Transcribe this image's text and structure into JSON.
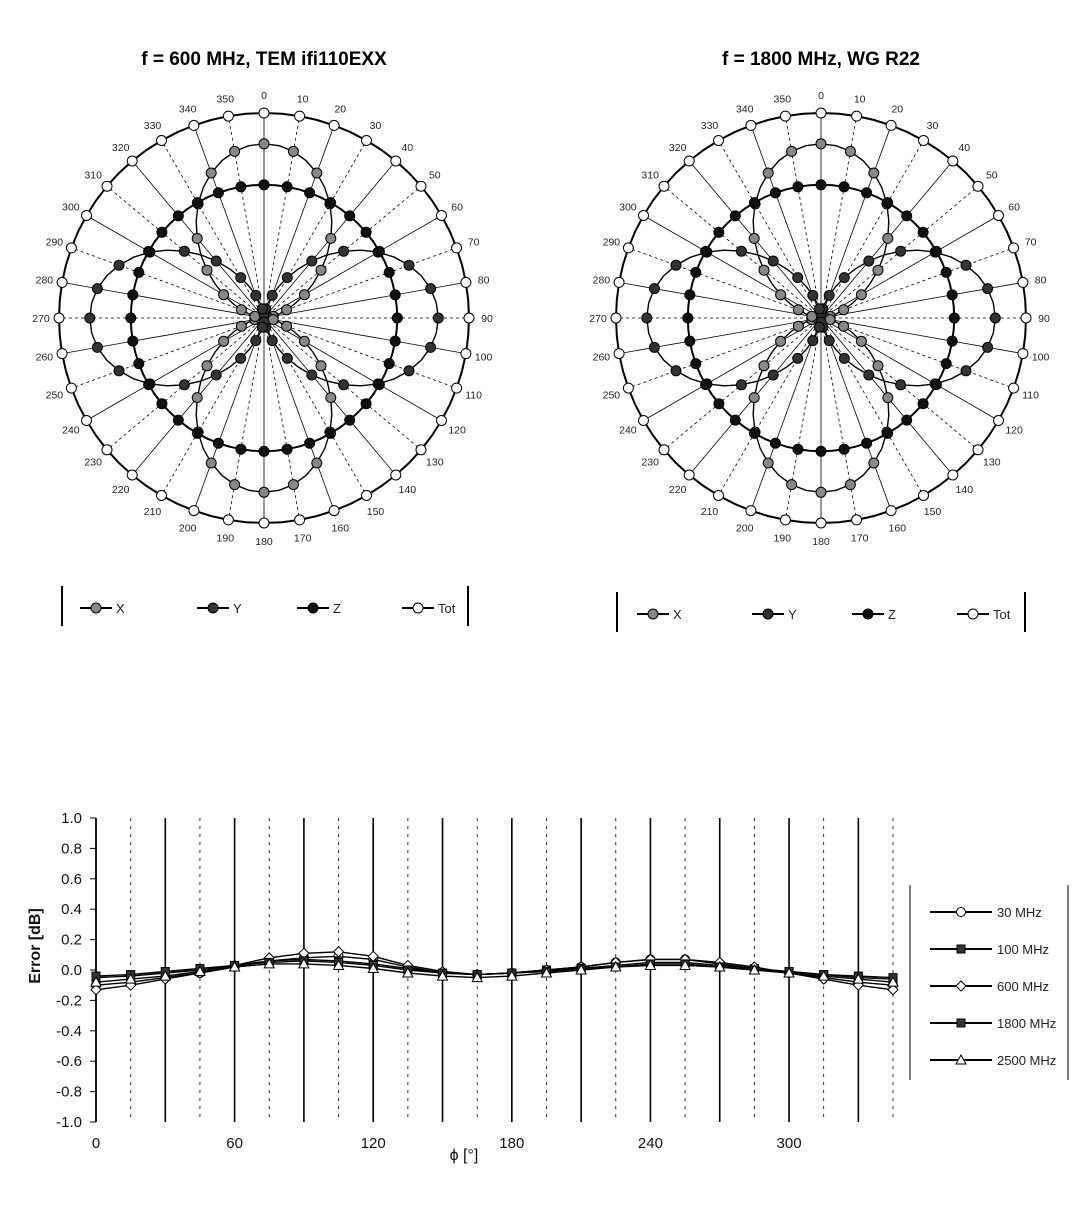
{
  "chart_data": [
    {
      "type": "polar",
      "title": "f = 600 MHz, TEM  ifi110EXX",
      "angle_labels": [
        "0",
        "10",
        "20",
        "30",
        "40",
        "50",
        "60",
        "70",
        "80",
        "90",
        "100",
        "110",
        "120",
        "130",
        "140",
        "150",
        "160",
        "170",
        "180",
        "190",
        "200",
        "210",
        "220",
        "230",
        "240",
        "250",
        "260",
        "270",
        "280",
        "290",
        "300",
        "310",
        "320",
        "330",
        "340",
        "350"
      ],
      "series": [
        {
          "name": "X",
          "pattern": "cos2",
          "max": 0.85,
          "min": 0.02
        },
        {
          "name": "Y",
          "pattern": "sin2",
          "max": 0.85,
          "min": 0.02
        },
        {
          "name": "Z",
          "pattern": "const",
          "max": 0.65,
          "min": 0.65
        },
        {
          "name": "Tot",
          "pattern": "const",
          "max": 1.0,
          "min": 1.0
        }
      ],
      "legend_position": "bottom"
    },
    {
      "type": "polar",
      "title": "f = 1800 MHz, WG R22",
      "angle_labels": [
        "0",
        "10",
        "20",
        "30",
        "40",
        "50",
        "60",
        "70",
        "80",
        "90",
        "100",
        "110",
        "120",
        "130",
        "140",
        "150",
        "160",
        "170",
        "180",
        "190",
        "200",
        "210",
        "220",
        "230",
        "240",
        "250",
        "260",
        "270",
        "280",
        "290",
        "300",
        "310",
        "320",
        "330",
        "340",
        "350"
      ],
      "series": [
        {
          "name": "X",
          "pattern": "cos2",
          "max": 0.85,
          "min": 0.02
        },
        {
          "name": "Y",
          "pattern": "sin2",
          "max": 0.85,
          "min": 0.02
        },
        {
          "name": "Z",
          "pattern": "const",
          "max": 0.65,
          "min": 0.65
        },
        {
          "name": "Tot",
          "pattern": "const",
          "max": 1.0,
          "min": 1.0
        }
      ],
      "legend_position": "bottom"
    },
    {
      "type": "line",
      "title": "",
      "xlabel": "ϕ [°]",
      "ylabel": "Error [dB]",
      "xlim": [
        0,
        345
      ],
      "ylim": [
        -1.0,
        1.0
      ],
      "xticks": [
        "0",
        "60",
        "120",
        "180",
        "240",
        "300"
      ],
      "yticks": [
        "1.0",
        "0.8",
        "0.6",
        "0.4",
        "0.2",
        "0.0",
        "-0.2",
        "-0.4",
        "-0.6",
        "-0.8",
        "-1.0"
      ],
      "x": [
        0,
        15,
        30,
        45,
        60,
        75,
        90,
        105,
        120,
        135,
        150,
        165,
        180,
        195,
        210,
        225,
        240,
        255,
        270,
        285,
        300,
        315,
        330,
        345
      ],
      "series": [
        {
          "name": "30 MHz",
          "marker": "circle-open",
          "values": [
            -0.1,
            -0.08,
            -0.05,
            -0.02,
            0.02,
            0.06,
            0.08,
            0.09,
            0.07,
            0.02,
            -0.02,
            -0.03,
            -0.02,
            0.0,
            0.02,
            0.05,
            0.07,
            0.07,
            0.04,
            0.01,
            -0.02,
            -0.05,
            -0.08,
            -0.1
          ]
        },
        {
          "name": "100 MHz",
          "marker": "square-filled",
          "values": [
            -0.05,
            -0.04,
            -0.02,
            0.0,
            0.03,
            0.06,
            0.07,
            0.06,
            0.04,
            0.01,
            -0.02,
            -0.03,
            -0.02,
            0.0,
            0.01,
            0.03,
            0.05,
            0.05,
            0.03,
            0.01,
            -0.01,
            -0.03,
            -0.05,
            -0.06
          ]
        },
        {
          "name": "600 MHz",
          "marker": "diamond-open",
          "values": [
            -0.13,
            -0.1,
            -0.06,
            -0.02,
            0.03,
            0.08,
            0.11,
            0.12,
            0.09,
            0.03,
            -0.01,
            -0.03,
            -0.02,
            0.0,
            0.02,
            0.05,
            0.07,
            0.07,
            0.05,
            0.02,
            -0.02,
            -0.06,
            -0.1,
            -0.13
          ]
        },
        {
          "name": "1800 MHz",
          "marker": "square-filled",
          "values": [
            -0.04,
            -0.03,
            -0.01,
            0.01,
            0.03,
            0.05,
            0.06,
            0.05,
            0.03,
            0.0,
            -0.02,
            -0.03,
            -0.02,
            -0.01,
            0.01,
            0.02,
            0.04,
            0.04,
            0.02,
            0.0,
            -0.01,
            -0.03,
            -0.04,
            -0.05
          ]
        },
        {
          "name": "2500 MHz",
          "marker": "triangle-open",
          "values": [
            -0.08,
            -0.06,
            -0.04,
            -0.01,
            0.02,
            0.04,
            0.04,
            0.03,
            0.01,
            -0.02,
            -0.04,
            -0.05,
            -0.04,
            -0.02,
            0.0,
            0.02,
            0.03,
            0.03,
            0.02,
            0.0,
            -0.02,
            -0.04,
            -0.06,
            -0.08
          ]
        }
      ],
      "grid": true,
      "legend_position": "right"
    }
  ]
}
